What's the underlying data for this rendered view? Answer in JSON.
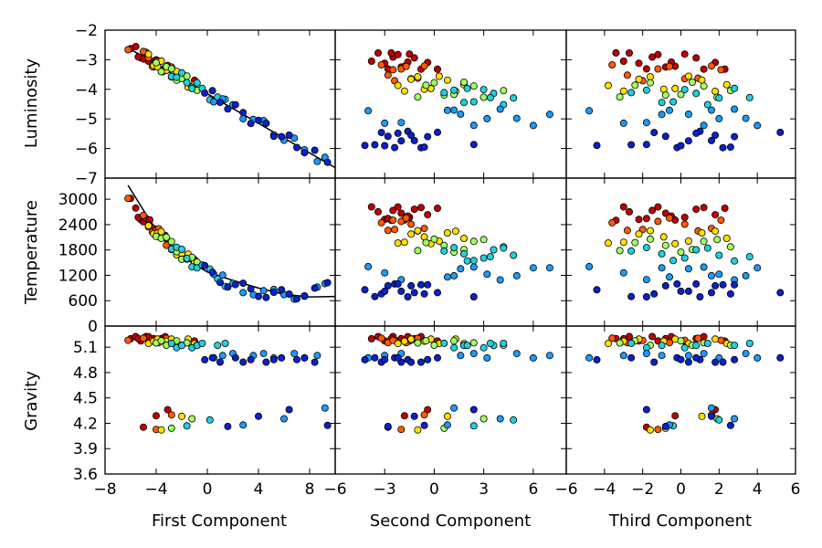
{
  "chart_data": {
    "type": "scatter",
    "layout": "3x3 scatter matrix",
    "colormap": "jet (color encodes Luminosity)",
    "columns": [
      {
        "xlabel": "First Component",
        "xlim": [
          -8,
          10
        ],
        "xticks": [
          "−8",
          "−4",
          "0",
          "4",
          "8"
        ],
        "xtick_values": [
          -8,
          -4,
          0,
          4,
          8
        ]
      },
      {
        "xlabel": "Second Component",
        "xlim": [
          -6,
          8
        ],
        "xticks": [
          "−6",
          "−3",
          "0",
          "3",
          "6"
        ],
        "xtick_values": [
          -6,
          -3,
          0,
          3,
          6
        ]
      },
      {
        "xlabel": "Third Component",
        "xlim": [
          -6,
          6
        ],
        "xticks": [
          "−6",
          "−4",
          "−2",
          "0",
          "2",
          "4",
          "6"
        ],
        "xtick_values": [
          -6,
          -4,
          -2,
          0,
          2,
          4,
          6
        ]
      }
    ],
    "rows": [
      {
        "ylabel": "Luminosity",
        "ylim": [
          -7,
          -2
        ],
        "yticks": [
          "−2",
          "−3",
          "−4",
          "−5",
          "−6",
          "−7"
        ],
        "ytick_values": [
          -2,
          -3,
          -4,
          -5,
          -6,
          -7
        ]
      },
      {
        "ylabel": "Temperature",
        "ylim": [
          0,
          3500
        ],
        "yticks": [
          "3000",
          "2400",
          "1800",
          "1200",
          "600",
          "0"
        ],
        "ytick_values": [
          3000,
          2400,
          1800,
          1200,
          600,
          0
        ]
      },
      {
        "ylabel": "Gravity",
        "ylim": [
          3.6,
          5.35
        ],
        "yticks": [
          "5.1",
          "4.8",
          "4.5",
          "4.2",
          "3.9",
          "3.6"
        ],
        "ytick_values": [
          5.1,
          4.8,
          4.5,
          4.2,
          3.9,
          3.6
        ]
      }
    ],
    "fit_lines": {
      "luminosity_vs_first": [
        [
          -6.2,
          -2.6
        ],
        [
          10.0,
          -6.65
        ]
      ],
      "temperature_vs_first": [
        [
          -6.2,
          3330
        ],
        [
          -4.5,
          2500
        ],
        [
          -3.0,
          1900
        ],
        [
          -1.5,
          1550
        ],
        [
          0.0,
          1280
        ],
        [
          2.0,
          1080
        ],
        [
          4.0,
          900
        ],
        [
          6.0,
          750
        ],
        [
          8.0,
          690
        ],
        [
          10.0,
          700
        ]
      ]
    },
    "series": [
      {
        "name": "red",
        "color": "#c00000",
        "luminosity": -3.05,
        "temperature": 2660,
        "gravity": 5.2,
        "first": [
          -6.0,
          -5.6,
          -5.2,
          -5.0,
          -4.8,
          -4.5,
          -4.2,
          -4.0,
          -3.8,
          -3.6,
          -3.3,
          -3.1,
          -5.4,
          -4.6,
          -1.0
        ],
        "second": [
          -3.8,
          -3.4,
          -3.0,
          -2.8,
          -2.5,
          -2.2,
          -2.0,
          -1.8,
          -1.5,
          -1.2,
          -0.8,
          -0.4,
          -2.6,
          -1.6,
          0.2
        ],
        "third": [
          -3.0,
          -2.7,
          -2.2,
          -1.8,
          -1.5,
          -1.2,
          -0.8,
          -0.3,
          0.2,
          0.8,
          1.2,
          1.8,
          -3.4,
          -0.5,
          2.3
        ]
      },
      {
        "name": "orange",
        "color": "#ff5a00",
        "luminosity": -3.45,
        "temperature": 2400,
        "gravity": 5.18,
        "first": [
          -5.0,
          -4.6,
          -4.3,
          -4.0,
          -3.8,
          -3.5,
          -3.2,
          -2.8,
          -6.2
        ],
        "second": [
          -3.2,
          -2.8,
          -2.4,
          -2.0,
          -1.7,
          -1.4,
          -1.0,
          -0.6,
          -2.5
        ],
        "third": [
          -3.6,
          -2.8,
          -2.0,
          -1.2,
          -0.6,
          0.2,
          0.9,
          1.6,
          2.1
        ]
      },
      {
        "name": "yellow",
        "color": "#ffe000",
        "luminosity": -3.8,
        "temperature": 2100,
        "gravity": 5.17,
        "first": [
          -4.6,
          -4.2,
          -3.9,
          -3.6,
          -3.2,
          -2.8,
          -2.4,
          -2.0,
          -1.5,
          -1.0
        ],
        "second": [
          -2.2,
          -1.8,
          -1.4,
          -1.0,
          -0.6,
          -0.2,
          0.3,
          0.8,
          1.3,
          1.8
        ],
        "third": [
          -3.8,
          -3.0,
          -2.2,
          -1.6,
          -0.9,
          -0.3,
          0.4,
          1.1,
          1.8,
          2.4
        ]
      },
      {
        "name": "lime",
        "color": "#a0ff60",
        "luminosity": -4.0,
        "temperature": 1900,
        "gravity": 5.15,
        "first": [
          -4.0,
          -3.6,
          -3.2,
          -2.8,
          -2.4,
          -2.0,
          -1.6,
          -1.2,
          -0.8
        ],
        "second": [
          -1.0,
          -0.5,
          0.0,
          0.6,
          1.2,
          1.8,
          2.4,
          3.0,
          4.2
        ],
        "third": [
          -3.2,
          -2.4,
          -1.6,
          -0.8,
          0.0,
          0.6,
          1.2,
          1.9,
          2.6
        ]
      },
      {
        "name": "cyan",
        "color": "#20d0e0",
        "luminosity": -4.25,
        "temperature": 1700,
        "gravity": 5.12,
        "first": [
          -2.8,
          -2.4,
          -2.0,
          -1.6,
          -1.2,
          -0.8,
          -0.4,
          0.2,
          0.8,
          1.4
        ],
        "second": [
          0.6,
          1.2,
          1.8,
          2.4,
          3.0,
          3.6,
          4.2,
          4.8,
          2.0,
          3.4
        ],
        "third": [
          -2.6,
          -1.8,
          -1.0,
          -0.4,
          0.2,
          0.8,
          1.4,
          2.0,
          2.8,
          3.6
        ]
      },
      {
        "name": "sky",
        "color": "#1a9bff",
        "luminosity": -4.95,
        "temperature": 1250,
        "gravity": 5.0,
        "first": [
          0.5,
          1.2,
          2.0,
          2.8,
          3.6,
          4.4,
          5.2,
          6.0,
          6.8,
          7.6,
          8.6,
          9.2
        ],
        "second": [
          -4.0,
          -3.0,
          -2.0,
          0.8,
          1.6,
          2.4,
          3.2,
          4.0,
          5.0,
          6.0,
          7.0,
          1.2
        ],
        "third": [
          -4.8,
          -3.0,
          -1.8,
          -0.6,
          0.4,
          1.2,
          2.0,
          2.8,
          3.4,
          4.0,
          -1.0,
          1.6
        ]
      },
      {
        "name": "navy",
        "color": "#0a22c8",
        "luminosity": -5.7,
        "temperature": 850,
        "gravity": 4.95,
        "first": [
          -0.2,
          0.4,
          1.0,
          1.6,
          2.2,
          2.8,
          3.4,
          4.0,
          4.6,
          5.2,
          5.8,
          6.4,
          7.0,
          7.6,
          8.4,
          9.4
        ],
        "second": [
          -4.2,
          -3.6,
          -3.2,
          -2.8,
          -2.4,
          -2.0,
          -1.6,
          -1.2,
          -0.8,
          -0.4,
          0.2,
          2.4,
          -3.0,
          -2.2,
          -1.4,
          -0.6
        ],
        "third": [
          -4.4,
          -2.6,
          -1.4,
          -0.8,
          -0.2,
          0.4,
          1.0,
          1.6,
          2.2,
          2.8,
          5.2,
          -1.8,
          0.0,
          0.8,
          1.8,
          2.6
        ]
      }
    ]
  }
}
